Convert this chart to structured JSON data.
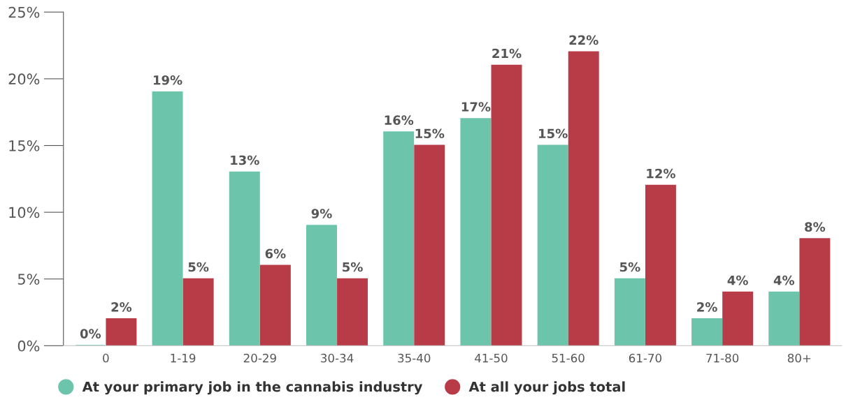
{
  "chart_data": {
    "type": "bar",
    "categories": [
      "0",
      "1-19",
      "20-29",
      "30-34",
      "35-40",
      "41-50",
      "51-60",
      "61-70",
      "71-80",
      "80+"
    ],
    "series": [
      {
        "name": "At your primary job in the cannabis industry",
        "color": "#6cc5ab",
        "values": [
          0,
          19,
          13,
          9,
          16,
          17,
          15,
          5,
          2,
          4
        ],
        "value_labels": [
          "0%",
          "19%",
          "13%",
          "9%",
          "16%",
          "17%",
          "15%",
          "5%",
          "2%",
          "4%"
        ]
      },
      {
        "name": "At all your jobs total",
        "color": "#b83c47",
        "values": [
          2,
          5,
          6,
          5,
          15,
          21,
          22,
          12,
          4,
          8
        ],
        "value_labels": [
          "2%",
          "5%",
          "6%",
          "5%",
          "15%",
          "21%",
          "22%",
          "12%",
          "4%",
          "8%"
        ]
      }
    ],
    "ylim": [
      0,
      25
    ],
    "yticks": [
      {
        "value": 0,
        "label": "0%"
      },
      {
        "value": 5,
        "label": "5%"
      },
      {
        "value": 10,
        "label": "10%"
      },
      {
        "value": 15,
        "label": "15%"
      },
      {
        "value": 20,
        "label": "20%"
      },
      {
        "value": 25,
        "label": "25%"
      }
    ],
    "grid": false,
    "legend": "bottom left"
  }
}
